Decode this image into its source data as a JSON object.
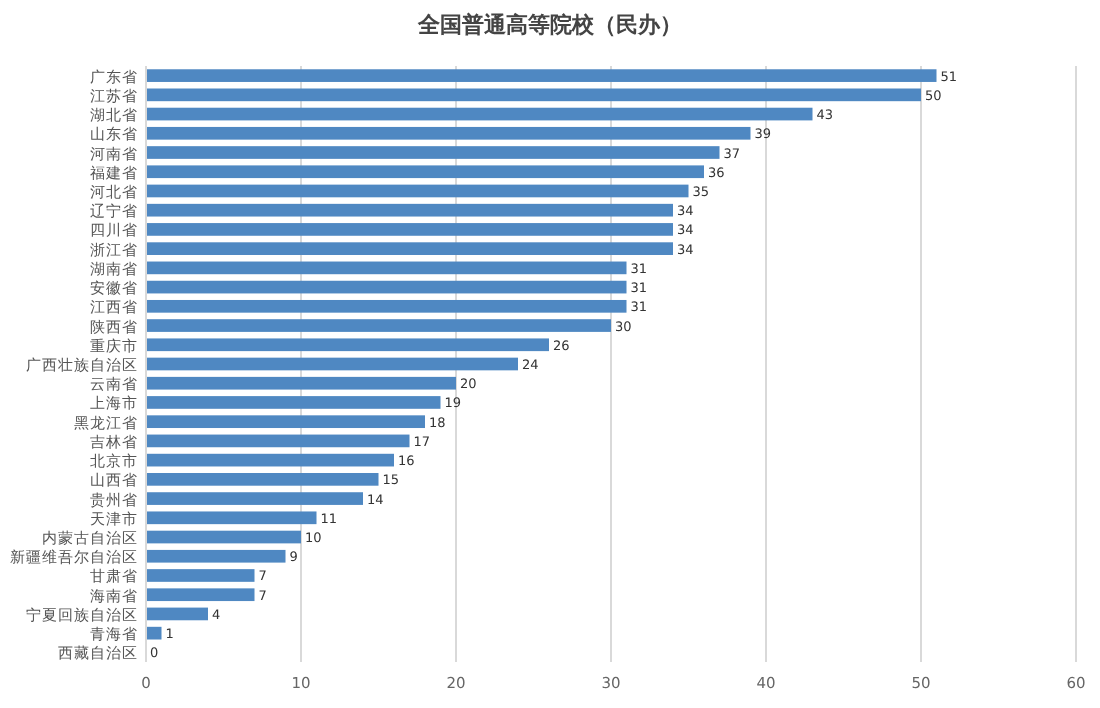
{
  "chart_data": {
    "type": "bar",
    "orientation": "horizontal",
    "title": "全国普通高等院校（民办）",
    "categories": [
      "广东省",
      "江苏省",
      "湖北省",
      "山东省",
      "河南省",
      "福建省",
      "河北省",
      "辽宁省",
      "四川省",
      "浙江省",
      "湖南省",
      "安徽省",
      "江西省",
      "陕西省",
      "重庆市",
      "广西壮族自治区",
      "云南省",
      "上海市",
      "黑龙江省",
      "吉林省",
      "北京市",
      "山西省",
      "贵州省",
      "天津市",
      "内蒙古自治区",
      "新疆维吾尔自治区",
      "甘肃省",
      "海南省",
      "宁夏回族自治区",
      "青海省",
      "西藏自治区"
    ],
    "values": [
      51,
      50,
      43,
      39,
      37,
      36,
      35,
      34,
      34,
      34,
      31,
      31,
      31,
      30,
      26,
      24,
      20,
      19,
      18,
      17,
      16,
      15,
      14,
      11,
      10,
      9,
      7,
      7,
      4,
      1,
      0
    ],
    "color": "#4f88c2",
    "xlim": [
      0,
      60
    ],
    "xticks": [
      0,
      10,
      20,
      30,
      40,
      50,
      60
    ],
    "grid": "x",
    "data_labels": true
  }
}
